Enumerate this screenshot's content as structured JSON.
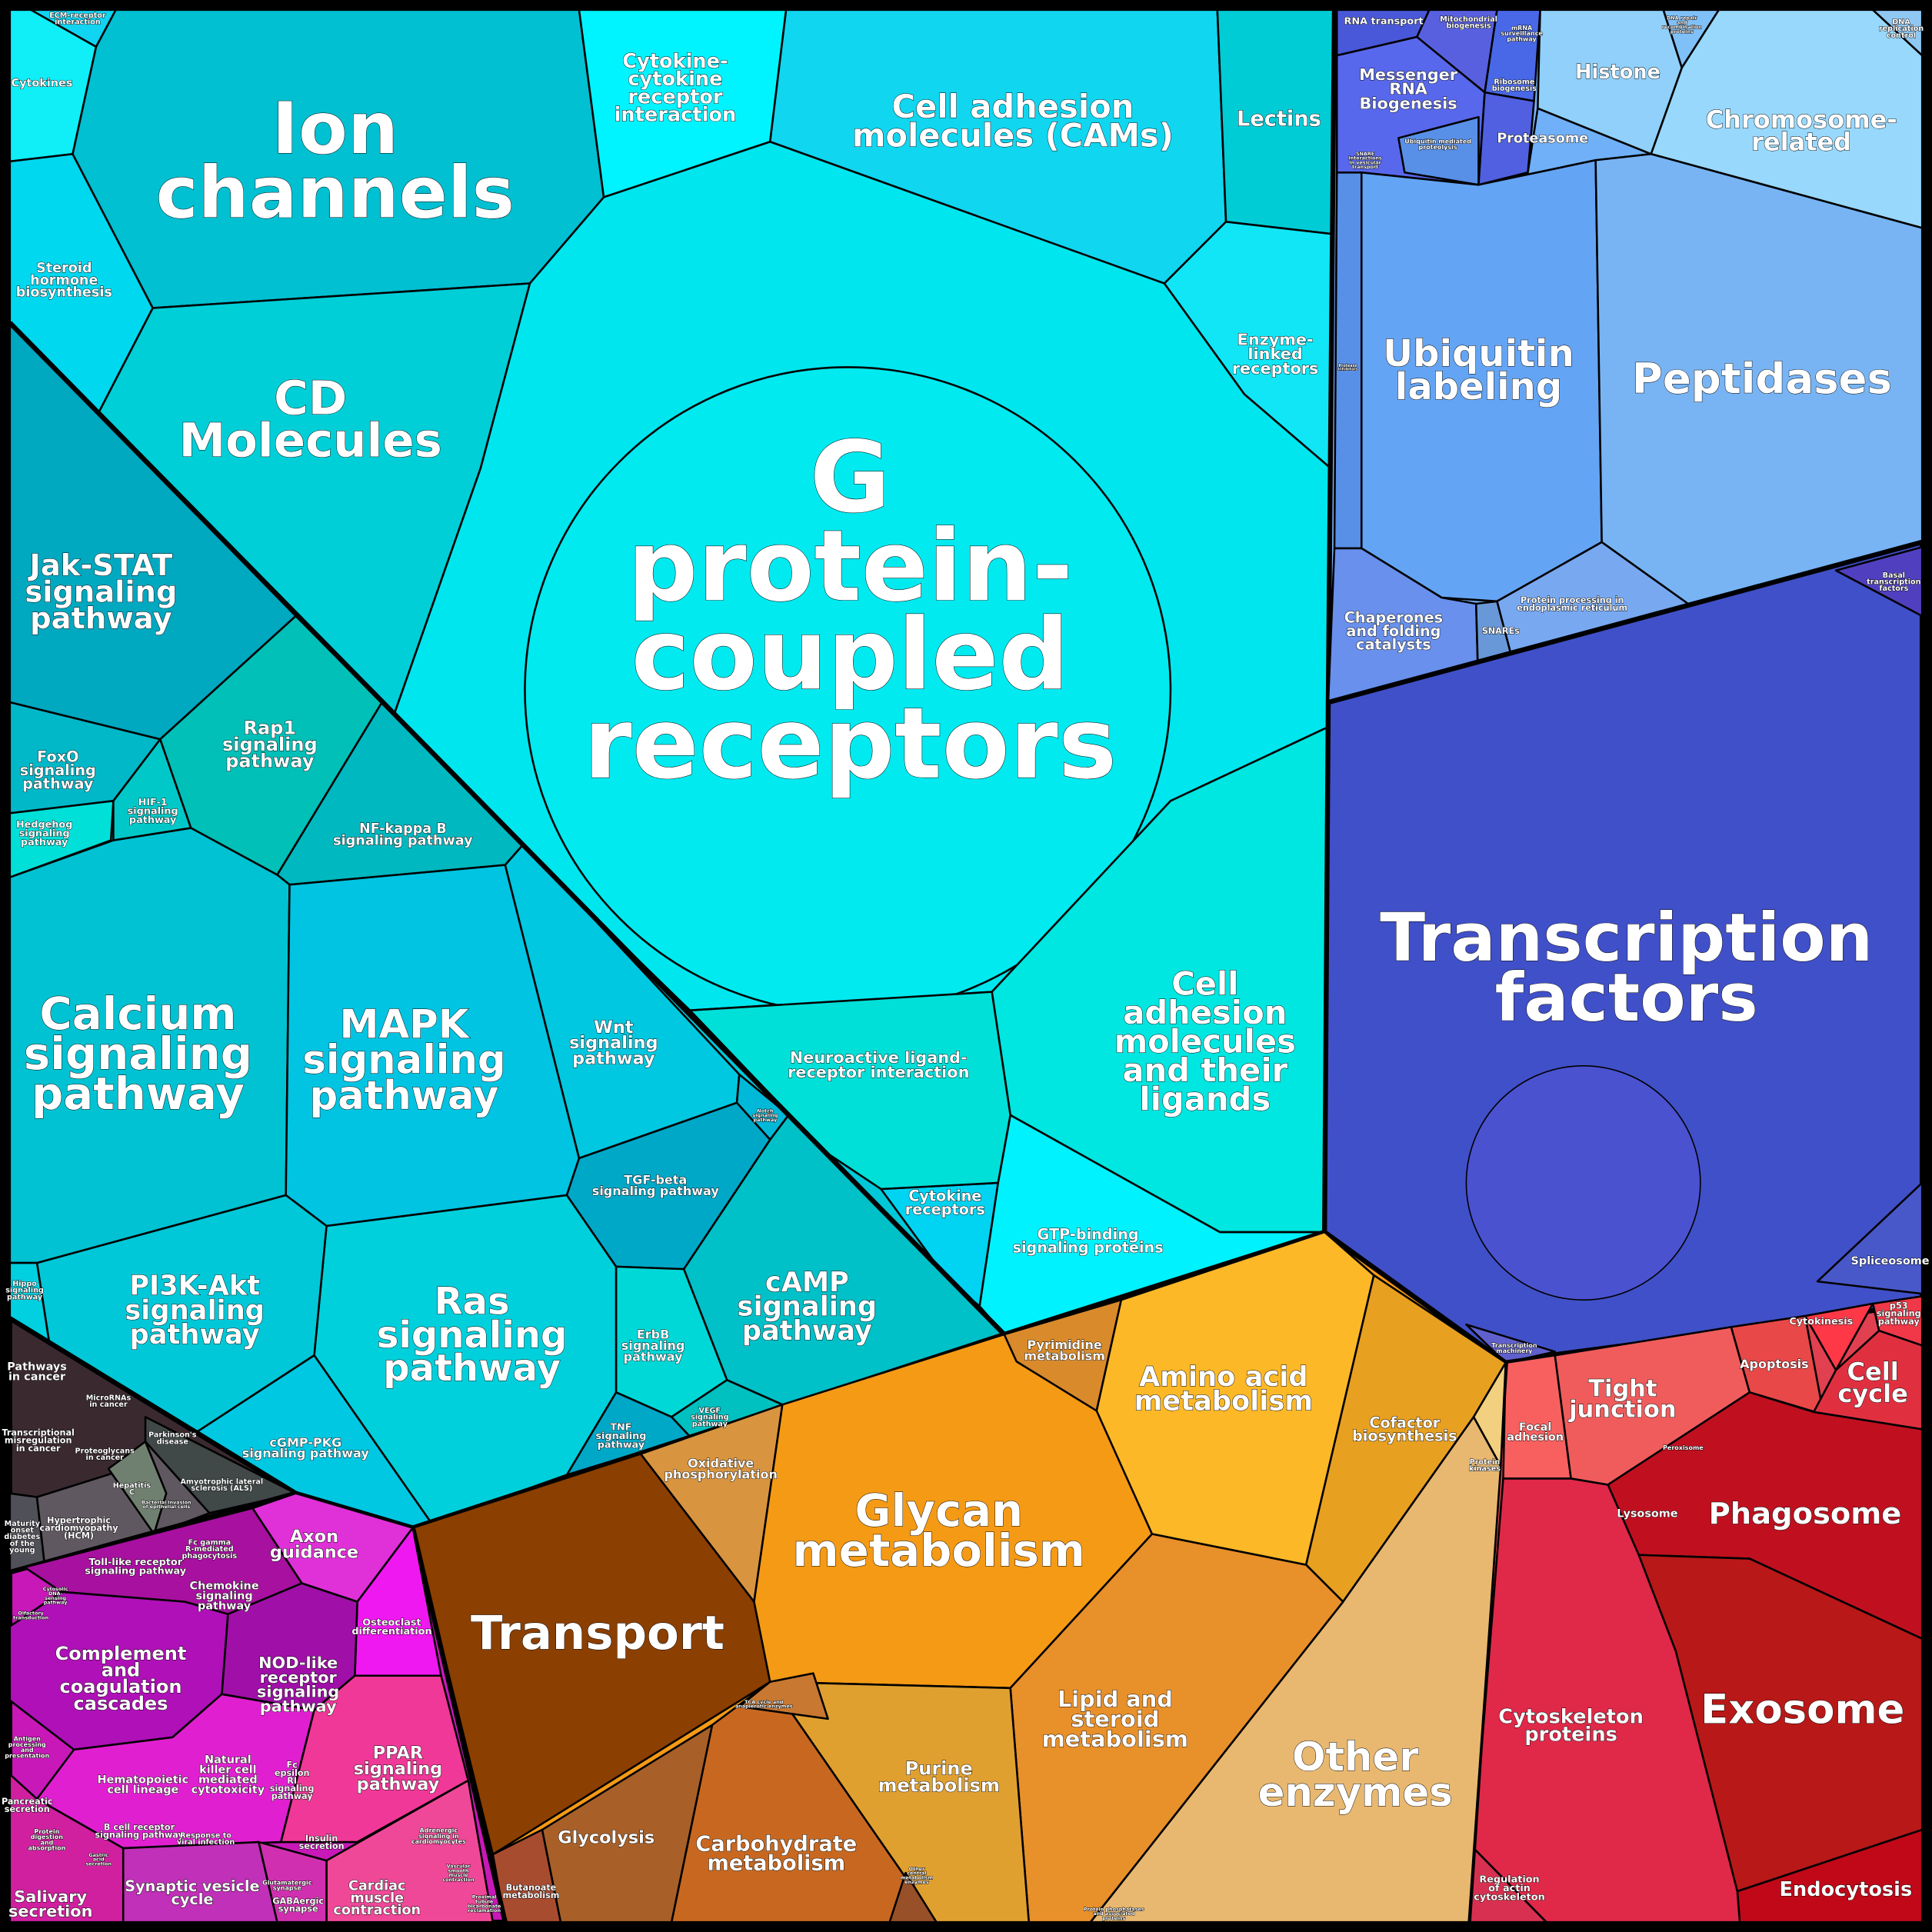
{
  "colors": {
    "signaling": "#00c8d8",
    "gpcr": "#00e6ee",
    "gpcr_core": "#00eaf0",
    "ion": "#00c0d2",
    "cd": "#00cfd8",
    "ecm": "#10d4f2",
    "cytokines": "#10eef8",
    "steroid": "#00d8f0",
    "ccr": "#00f4ff",
    "cams": "#10d6f0",
    "lectins": "#00ccd6",
    "enzyme_linked": "#10e6f6",
    "cam_ligands": "#00e6e0",
    "gtp": "#00f2ff",
    "cytokine_receptors": "#00d4f2",
    "neuroactive": "#00e0d8",
    "jak": "#00a8c0",
    "foxo": "#00b8c8",
    "hedgehog": "#00e0d8",
    "hif": "#00c8c8",
    "rap1": "#00c0b8",
    "nfkb": "#00b8c0",
    "calcium": "#00c2d2",
    "mapk": "#00c4e2",
    "wnt": "#00c8e0",
    "notch": "#00b8d8",
    "tgf": "#00a8c8",
    "camp": "#00c0c8",
    "erbb": "#00d8d8",
    "vegf": "#00c0c0",
    "tnf": "#00a8c8",
    "ras": "#00d0dc",
    "pi3k": "#00c8d8",
    "cgmp": "#00c8e2",
    "hippo": "#00d0e0",
    "info": "#78b0f8",
    "rna_transport": "#4858d8",
    "mito": "#5860e0",
    "mrna_surv": "#4868e8",
    "mrna_bio": "#5868ec",
    "ribosome": "#5060e0",
    "histone": "#90d0fa",
    "chromosome": "#98d8fc",
    "dna_repair": "#80c0f8",
    "dna_rep": "#90c8f4",
    "proteasome": "#70b0f8",
    "ubiquitin": "#64a4f4",
    "peptidases": "#78b4f4",
    "chaperones": "#6890ec",
    "snares": "#6898d8",
    "er": "#78a8f0",
    "protease_inh": "#5890e8",
    "tf": "#4050c8",
    "basal": "#5040c0",
    "spliceosome": "#4858c8",
    "tx_machinery": "#6060cc",
    "cellular": "#e04050",
    "focal": "#f86060",
    "tight": "#f05c5c",
    "apoptosis": "#e84848",
    "cytokinesis": "#ff3848",
    "p53": "#f03848",
    "cell_cycle": "#e03040",
    "phagosome": "#c01020",
    "exosome": "#b81818",
    "endocytosis": "#c00818",
    "cytoskeleton": "#e02848",
    "actin": "#d83050",
    "metab": "#f59a15",
    "transport": "#8b3f00",
    "oxphos": "#d8943f",
    "glycan": "#f59a15",
    "pyrimidine": "#d98a2a",
    "amino": "#fdb827",
    "cofactor": "#e8a020",
    "kinases": "#f2d080",
    "other_enz": "#e8b870",
    "lipid": "#e8902a",
    "purine": "#e0a030",
    "carb": "#c86820",
    "glycolysis": "#a86028",
    "butanoate": "#a84c30",
    "other_central": "#985028",
    "tca": "#c87830",
    "organismal": "#c818b8",
    "axon": "#e030d8",
    "osteoclast": "#f018f0",
    "nod": "#a010a8",
    "complement": "#b010b8",
    "toll": "#a810a0",
    "ppar": "#f03898",
    "cardiac": "#f04898",
    "nk": "#e020d0",
    "synaptic": "#c030b8",
    "salivary": "#d020a0",
    "gaba": "#d030b0",
    "disease": "#3a2a30",
    "hcm": "#605860",
    "hepc": "#708070",
    "als": "#404848",
    "mody": "#505058"
  },
  "labels": {
    "gpcr": "G\nprotein-\ncoupled\nreceptors",
    "ion": "Ion\nchannels",
    "cd": "CD\nMolecules",
    "cams": "Cell adhesion\nmolecules (CAMs)",
    "ccr": "Cytokine-\ncytokine\nreceptor\ninteraction",
    "lectins": "Lectins",
    "enzyme_linked": "Enzyme-\nlinked\nreceptors",
    "cam_ligands": "Cell\nadhesion\nmolecules\nand their\nligands",
    "gtp": "GTP-binding\nsignaling proteins",
    "cytokine_receptors": "Cytokine\nreceptors",
    "neuroactive": "Neuroactive ligand-\nreceptor interaction",
    "ecm": "ECM-receptor\ninteraction",
    "cytokines": "Cytokines",
    "steroid": "Steroid\nhormone\nbiosynthesis",
    "jak": "Jak-STAT\nsignaling\npathway",
    "rap1": "Rap1\nsignaling\npathway",
    "nfkb": "NF-kappa B\nsignaling pathway",
    "foxo": "FoxO\nsignaling\npathway",
    "hif": "HIF-1\nsignaling\npathway",
    "hedgehog": "Hedgehog\nsignaling\npathway",
    "calcium": "Calcium\nsignaling\npathway",
    "mapk": "MAPK\nsignaling\npathway",
    "wnt": "Wnt\nsignaling\npathway",
    "notch": "Notch\nsignaling\npathway",
    "tgf": "TGF-beta\nsignaling pathway",
    "camp": "cAMP\nsignaling\npathway",
    "erbb": "ErbB\nsignaling\npathway",
    "vegf": "VEGF\nsignaling\npathway",
    "tnf": "TNF\nsignaling\npathway",
    "ras": "Ras\nsignaling\npathway",
    "pi3k": "PI3K-Akt\nsignaling\npathway",
    "cgmp": "cGMP-PKG\nsignaling pathway",
    "hippo": "Hippo\nsignaling\npathway",
    "pathways_cancer": "Pathways\nin cancer",
    "micrornas": "MicroRNAs\nin cancer",
    "tx_misreg": "Transcriptional\nmisregulation\nin cancer",
    "proteoglycans": "Proteoglycans\nin cancer",
    "parkinsons": "Parkinson's\ndisease",
    "als": "Amyotrophic lateral\nsclerosis (ALS)",
    "hepc": "Hepatitis\nC",
    "hcm": "Hypertrophic\ncardiomyopathy\n(HCM)",
    "mody": "Maturity\nonset\ndiabetes\nof the\nyoung",
    "bacterial": "Bacterial invasion\nof epithelial cells",
    "toll": "Toll-like receptor\nsignaling pathway",
    "fcgamma": "Fc gamma\nR-mediated\nphagocytosis",
    "chemokine": "Chemokine\nsignaling\npathway",
    "axon": "Axon\nguidance",
    "osteoclast": "Osteoclast\ndifferentiation",
    "cytosolic_dna": "Cytosolic\nDNA-\nsensing\npathway",
    "olfactory": "Olfactory\ntransduction",
    "complement": "Complement\nand\ncoagulation\ncascades",
    "nod": "NOD-like\nreceptor\nsignaling\npathway",
    "antigen": "Antigen\nprocessing\nand\npresentation",
    "hematopoietic": "Hematopoietic\ncell lineage",
    "nk": "Natural\nkiller cell\nmediated\ncytotoxicity",
    "fcepsilon": "Fc\nepsilon\nRI\nsignaling\npathway",
    "ppar": "PPAR\nsignaling\npathway",
    "pancreatic": "Pancreatic\nsecretion",
    "protein_digestion": "Protein\ndigestion\nand\nabsorption",
    "bcell": "B cell receptor\nsignaling pathway",
    "viral": "Response to\nviral infection",
    "gastric": "Gastric\nacid\nsecretion",
    "adrenergic": "Adrenergic\nsignaling in\ncardiomyocytes",
    "insulin": "Insulin\nsecretion",
    "vascular": "Vascular\nsmooth\nmuscle\ncontraction",
    "glutamatergic": "Glutamatergic\nsynapse",
    "gaba": "GABAergic\nsynapse",
    "synaptic": "Synaptic vesicle\ncycle",
    "salivary": "Salivary\nsecretion",
    "cardiac": "Cardiac\nmuscle\ncontraction",
    "proximal": "Proximal\ntubule\nbicarbonate\nreclamation",
    "transport": "Transport",
    "oxphos": "Oxidative\nphosphorylation",
    "glycan": "Glycan\nmetabolism",
    "pyrimidine": "Pyrimidine\nmetabolism",
    "amino": "Amino acid\nmetabolism",
    "cofactor": "Cofactor\nbiosynthesis",
    "kinases": "Protein\nkinases",
    "lipid": "Lipid and\nsteroid\nmetabolism",
    "other_enz": "Other\nenzymes",
    "phosphatases": "Protein phosphatases\nand associated\nproteins",
    "purine": "Purine\nmetabolism",
    "tca": "TCA cycle and\nanaplerotic enzymes",
    "carb": "Carbohydrate\nmetabolism",
    "glycolysis": "Glycolysis",
    "butanoate": "Butanoate\nmetabolism",
    "other_central": "Other\ncentral\nmetabolism\nenzymes",
    "tf": "Transcription\nfactors",
    "basal": "Basal\ntranscription\nfactors",
    "spliceosome": "Spliceosome",
    "tx_machinery": "Transcription\nmachinery",
    "rna_transport": "RNA transport",
    "mito": "Mitochondrial\nbiogenesis",
    "mrna_surv": "mRNA\nsurveillance\npathway",
    "mrna_bio": "Messenger\nRNA\nBiogenesis",
    "ribosome": "Ribosome\nbiogenesis",
    "histone": "Histone",
    "chromosome": "Chromosome-\nrelated",
    "dna_repair": "DNA repair\nand\nrecombination\nproteins",
    "dna_rep": "DNA\nreplication\ncontrol",
    "proteasome": "Proteasome",
    "ub_proteolysis": "Ubiquitin mediated\nproteolysis",
    "snare_int": "SNARE\ninteractions\nin vesicular\ntransport",
    "protease_inh": "Protease\ninhibitors",
    "ubiquitin": "Ubiquitin\nlabeling",
    "peptidases": "Peptidases",
    "chaperones": "Chaperones\nand folding\ncatalysts",
    "snares": "SNAREs",
    "er": "Protein processing in\nendoplasmic reticulum",
    "focal": "Focal\nadhesion",
    "tight": "Tight\njunction",
    "apoptosis": "Apoptosis",
    "cytokinesis": "Cytokinesis",
    "p53": "p53\nsignaling\npathway",
    "cell_cycle": "Cell\ncycle",
    "peroxisome": "Peroxisome",
    "lysosome": "Lysosome",
    "phagosome": "Phagosome",
    "exosome": "Exosome",
    "endocytosis": "Endocytosis",
    "cytoskeleton": "Cytoskeleton\nproteins",
    "actin": "Regulation\nof actin\ncytoskeleton"
  }
}
